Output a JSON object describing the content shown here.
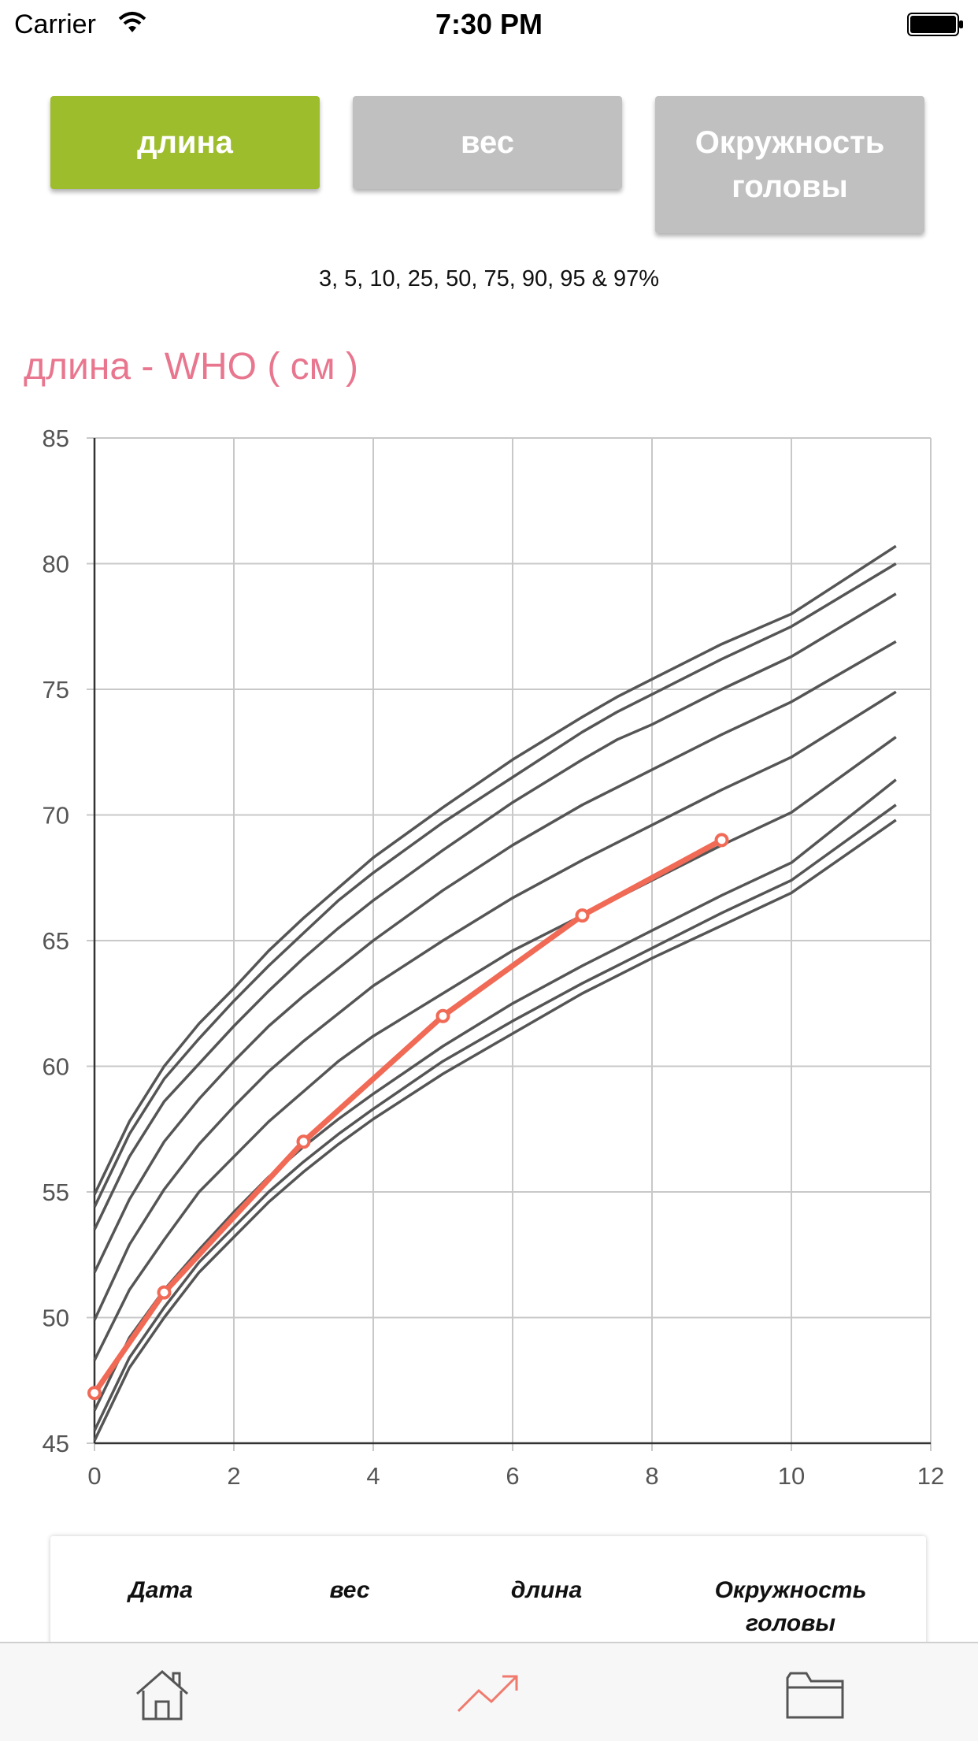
{
  "status_bar": {
    "carrier": "Carrier",
    "time": "7:30 PM"
  },
  "tabs": {
    "length": "длина",
    "weight": "вес",
    "head": "Окружность головы",
    "active": "length",
    "active_color": "#9ebd2d",
    "inactive_color": "#c0c0c0"
  },
  "percentiles_text": "3, 5, 10, 25, 50, 75, 90, 95 & 97%",
  "chart_title": "длина - WHO ( см )",
  "chart_data": {
    "type": "line",
    "xlim": [
      0,
      12
    ],
    "ylim": [
      45,
      85
    ],
    "x_ticks": [
      0,
      2,
      4,
      6,
      8,
      10,
      12
    ],
    "y_ticks": [
      45,
      50,
      55,
      60,
      65,
      70,
      75,
      80,
      85
    ],
    "grid": true,
    "percentile_x": [
      0,
      0.5,
      1,
      1.5,
      2,
      2.5,
      3,
      3.5,
      4,
      5,
      6,
      7,
      7.5,
      8,
      9,
      10,
      11.5
    ],
    "percentile_series": [
      {
        "percentile": "3",
        "values": [
          45.1,
          48.0,
          50.0,
          51.8,
          53.2,
          54.6,
          55.8,
          56.9,
          57.9,
          59.7,
          61.3,
          62.9,
          63.6,
          64.3,
          65.6,
          66.9,
          69.8
        ]
      },
      {
        "percentile": "5",
        "values": [
          45.5,
          48.4,
          50.4,
          52.2,
          53.6,
          55.0,
          56.2,
          57.3,
          58.3,
          60.2,
          61.8,
          63.3,
          64.0,
          64.7,
          66.1,
          67.4,
          70.4
        ]
      },
      {
        "percentile": "10",
        "values": [
          46.3,
          49.2,
          51.1,
          52.7,
          54.2,
          55.6,
          56.8,
          57.9,
          58.9,
          60.8,
          62.5,
          64.0,
          64.7,
          65.4,
          66.8,
          68.1,
          71.4
        ]
      },
      {
        "percentile": "25",
        "values": [
          48.3,
          51.1,
          53.1,
          55.0,
          56.4,
          57.8,
          59.0,
          60.2,
          61.2,
          62.9,
          64.6,
          66.0,
          66.7,
          67.4,
          68.8,
          70.1,
          73.1
        ]
      },
      {
        "percentile": "50",
        "values": [
          49.9,
          52.9,
          55.1,
          56.9,
          58.4,
          59.8,
          61.0,
          62.1,
          63.2,
          65.0,
          66.7,
          68.2,
          68.9,
          69.6,
          71.0,
          72.3,
          74.9
        ]
      },
      {
        "percentile": "75",
        "values": [
          51.8,
          54.7,
          57.0,
          58.7,
          60.2,
          61.6,
          62.8,
          63.9,
          65.0,
          67.0,
          68.8,
          70.4,
          71.1,
          71.8,
          73.2,
          74.5,
          76.9
        ]
      },
      {
        "percentile": "90",
        "values": [
          53.5,
          56.4,
          58.6,
          60.1,
          61.6,
          63.0,
          64.3,
          65.5,
          66.6,
          68.6,
          70.5,
          72.2,
          73.0,
          73.6,
          75.0,
          76.3,
          78.8
        ]
      },
      {
        "percentile": "95",
        "values": [
          54.4,
          57.3,
          59.5,
          61.1,
          62.6,
          64.0,
          65.3,
          66.6,
          67.7,
          69.7,
          71.5,
          73.3,
          74.1,
          74.8,
          76.2,
          77.5,
          80.0
        ]
      },
      {
        "percentile": "97",
        "values": [
          54.9,
          57.8,
          60.0,
          61.7,
          63.1,
          64.6,
          65.9,
          67.1,
          68.3,
          70.3,
          72.2,
          73.9,
          74.7,
          75.4,
          76.8,
          78.0,
          80.7
        ]
      }
    ],
    "child_series": {
      "x": [
        0,
        1,
        3,
        5,
        7,
        9
      ],
      "values": [
        47,
        51,
        57,
        62,
        66,
        69
      ]
    },
    "colors": {
      "percentile_line": "#555555",
      "child_line": "#f06a56",
      "grid": "#c8c8c8"
    }
  },
  "table_headers": {
    "date": "Дата",
    "weight": "вес",
    "length": "длина",
    "head": "Окружность головы"
  },
  "tab_bar": {
    "items": [
      "home-icon",
      "chart-trend-icon",
      "folder-icon"
    ],
    "active_color": "#f07a6e"
  }
}
